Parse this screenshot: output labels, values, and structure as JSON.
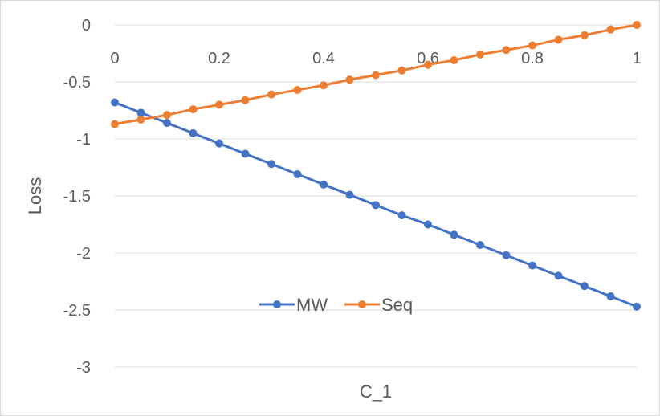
{
  "chart_data": {
    "type": "line",
    "title": "",
    "xlabel": "C_1",
    "ylabel": "Loss",
    "xlim": [
      0,
      1
    ],
    "ylim": [
      -3,
      0
    ],
    "x_ticks": [
      "0",
      "0.2",
      "0.4",
      "0.6",
      "0.8",
      "1"
    ],
    "y_ticks": [
      "0",
      "-0.5",
      "-1",
      "-1.5",
      "-2",
      "-2.5",
      "-3"
    ],
    "grid": true,
    "legend_position": "center",
    "x": [
      0,
      0.05,
      0.1,
      0.15,
      0.2,
      0.25,
      0.3,
      0.35,
      0.4,
      0.45,
      0.5,
      0.55,
      0.6,
      0.65,
      0.7,
      0.75,
      0.8,
      0.85,
      0.9,
      0.95,
      1
    ],
    "series": [
      {
        "name": "MW",
        "color": "#4472C4",
        "values": [
          -0.68,
          -0.77,
          -0.86,
          -0.95,
          -1.04,
          -1.13,
          -1.22,
          -1.31,
          -1.4,
          -1.49,
          -1.58,
          -1.67,
          -1.75,
          -1.84,
          -1.93,
          -2.02,
          -2.11,
          -2.2,
          -2.29,
          -2.38,
          -2.47
        ]
      },
      {
        "name": "Seq",
        "color": "#ED7D31",
        "values": [
          -0.87,
          -0.83,
          -0.79,
          -0.74,
          -0.7,
          -0.66,
          -0.61,
          -0.57,
          -0.53,
          -0.48,
          -0.44,
          -0.4,
          -0.35,
          -0.31,
          -0.26,
          -0.22,
          -0.18,
          -0.13,
          -0.09,
          -0.04,
          0.0
        ]
      }
    ]
  }
}
